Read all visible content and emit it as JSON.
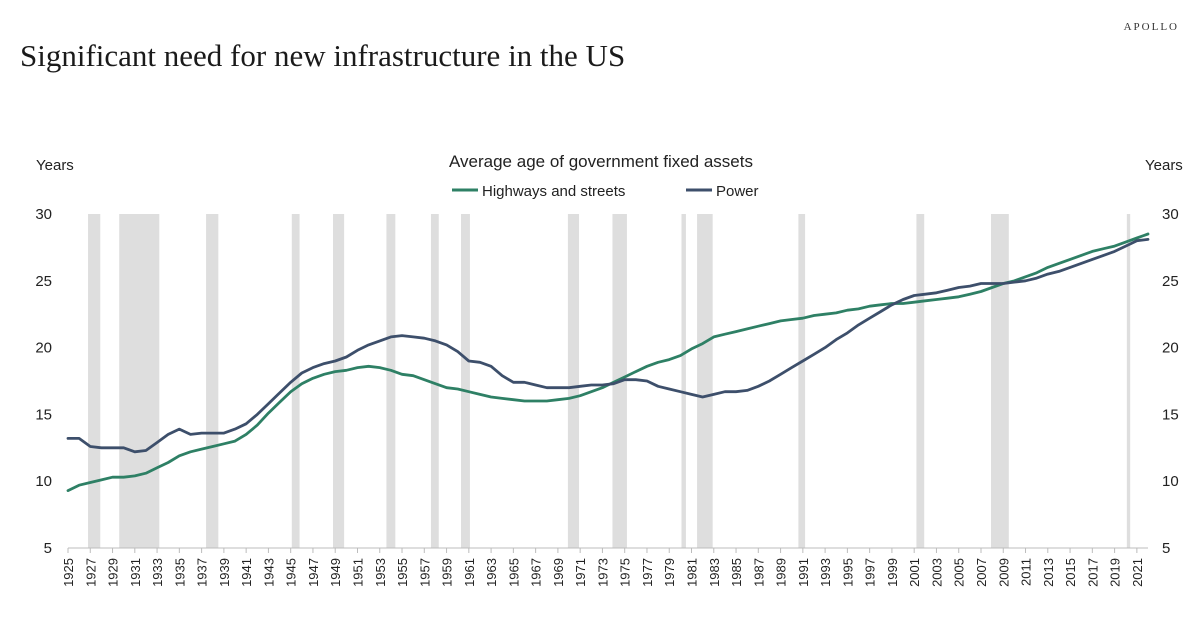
{
  "brand": "APOLLO",
  "page_title": "Significant need for new infrastructure in the US",
  "chart_data": {
    "type": "line",
    "title": "Average age of government fixed assets",
    "ylabel_left": "Years",
    "ylabel_right": "Years",
    "ylim": [
      5,
      30
    ],
    "yticks": [
      5,
      10,
      15,
      20,
      25,
      30
    ],
    "x_range": [
      1925,
      2022
    ],
    "x_tick_labels": [
      "1925",
      "1927",
      "1929",
      "1931",
      "1933",
      "1935",
      "1937",
      "1939",
      "1941",
      "1943",
      "1945",
      "1947",
      "1949",
      "1951",
      "1953",
      "1955",
      "1957",
      "1959",
      "1961",
      "1963",
      "1965",
      "1967",
      "1969",
      "1971",
      "1973",
      "1975",
      "1977",
      "1979",
      "1981",
      "1983",
      "1985",
      "1987",
      "1989",
      "1991",
      "1993",
      "1995",
      "1997",
      "1999",
      "2001",
      "2003",
      "2005",
      "2007",
      "2009",
      "2011",
      "2013",
      "2015",
      "2017",
      "2019",
      "2021"
    ],
    "legend_position": "top-center",
    "grid": false,
    "recession_shading": [
      [
        1926.8,
        1927.9
      ],
      [
        1929.6,
        1933.2
      ],
      [
        1937.4,
        1938.5
      ],
      [
        1945.1,
        1945.8
      ],
      [
        1948.8,
        1949.8
      ],
      [
        1953.6,
        1954.4
      ],
      [
        1957.6,
        1958.3
      ],
      [
        1960.3,
        1961.1
      ],
      [
        1969.9,
        1970.9
      ],
      [
        1973.9,
        1975.2
      ],
      [
        1980.1,
        1980.5
      ],
      [
        1981.5,
        1982.9
      ],
      [
        1990.6,
        1991.2
      ],
      [
        2001.2,
        2001.9
      ],
      [
        2007.9,
        2009.5
      ],
      [
        2020.1,
        2020.4
      ]
    ],
    "series": [
      {
        "name": "Highways and streets",
        "color": "#2e8065",
        "x": [
          1925,
          1926,
          1927,
          1928,
          1929,
          1930,
          1931,
          1932,
          1933,
          1934,
          1935,
          1936,
          1937,
          1938,
          1939,
          1940,
          1941,
          1942,
          1943,
          1944,
          1945,
          1946,
          1947,
          1948,
          1949,
          1950,
          1951,
          1952,
          1953,
          1954,
          1955,
          1956,
          1957,
          1958,
          1959,
          1960,
          1961,
          1962,
          1963,
          1964,
          1965,
          1966,
          1967,
          1968,
          1969,
          1970,
          1971,
          1972,
          1973,
          1974,
          1975,
          1976,
          1977,
          1978,
          1979,
          1980,
          1981,
          1982,
          1983,
          1984,
          1985,
          1986,
          1987,
          1988,
          1989,
          1990,
          1991,
          1992,
          1993,
          1994,
          1995,
          1996,
          1997,
          1998,
          1999,
          2000,
          2001,
          2002,
          2003,
          2004,
          2005,
          2006,
          2007,
          2008,
          2009,
          2010,
          2011,
          2012,
          2013,
          2014,
          2015,
          2016,
          2017,
          2018,
          2019,
          2020,
          2021,
          2022
        ],
        "values": [
          9.3,
          9.7,
          9.9,
          10.1,
          10.3,
          10.3,
          10.4,
          10.6,
          11.0,
          11.4,
          11.9,
          12.2,
          12.4,
          12.6,
          12.8,
          13.0,
          13.5,
          14.2,
          15.1,
          15.9,
          16.7,
          17.3,
          17.7,
          18.0,
          18.2,
          18.3,
          18.5,
          18.6,
          18.5,
          18.3,
          18.0,
          17.9,
          17.6,
          17.3,
          17.0,
          16.9,
          16.7,
          16.5,
          16.3,
          16.2,
          16.1,
          16.0,
          16.0,
          16.0,
          16.1,
          16.2,
          16.4,
          16.7,
          17.0,
          17.4,
          17.8,
          18.2,
          18.6,
          18.9,
          19.1,
          19.4,
          19.9,
          20.3,
          20.8,
          21.0,
          21.2,
          21.4,
          21.6,
          21.8,
          22.0,
          22.1,
          22.2,
          22.4,
          22.5,
          22.6,
          22.8,
          22.9,
          23.1,
          23.2,
          23.3,
          23.3,
          23.4,
          23.5,
          23.6,
          23.7,
          23.8,
          24.0,
          24.2,
          24.5,
          24.8,
          25.0,
          25.3,
          25.6,
          26.0,
          26.3,
          26.6,
          26.9,
          27.2,
          27.4,
          27.6,
          27.9,
          28.2,
          28.5
        ]
      },
      {
        "name": "Power",
        "color": "#3d4f6b",
        "x": [
          1925,
          1926,
          1927,
          1928,
          1929,
          1930,
          1931,
          1932,
          1933,
          1934,
          1935,
          1936,
          1937,
          1938,
          1939,
          1940,
          1941,
          1942,
          1943,
          1944,
          1945,
          1946,
          1947,
          1948,
          1949,
          1950,
          1951,
          1952,
          1953,
          1954,
          1955,
          1956,
          1957,
          1958,
          1959,
          1960,
          1961,
          1962,
          1963,
          1964,
          1965,
          1966,
          1967,
          1968,
          1969,
          1970,
          1971,
          1972,
          1973,
          1974,
          1975,
          1976,
          1977,
          1978,
          1979,
          1980,
          1981,
          1982,
          1983,
          1984,
          1985,
          1986,
          1987,
          1988,
          1989,
          1990,
          1991,
          1992,
          1993,
          1994,
          1995,
          1996,
          1997,
          1998,
          1999,
          2000,
          2001,
          2002,
          2003,
          2004,
          2005,
          2006,
          2007,
          2008,
          2009,
          2010,
          2011,
          2012,
          2013,
          2014,
          2015,
          2016,
          2017,
          2018,
          2019,
          2020,
          2021,
          2022
        ],
        "values": [
          13.2,
          13.2,
          12.6,
          12.5,
          12.5,
          12.5,
          12.2,
          12.3,
          12.9,
          13.5,
          13.9,
          13.5,
          13.6,
          13.6,
          13.6,
          13.9,
          14.3,
          15.0,
          15.8,
          16.6,
          17.4,
          18.1,
          18.5,
          18.8,
          19.0,
          19.3,
          19.8,
          20.2,
          20.5,
          20.8,
          20.9,
          20.8,
          20.7,
          20.5,
          20.2,
          19.7,
          19.0,
          18.9,
          18.6,
          17.9,
          17.4,
          17.4,
          17.2,
          17.0,
          17.0,
          17.0,
          17.1,
          17.2,
          17.2,
          17.3,
          17.6,
          17.6,
          17.5,
          17.1,
          16.9,
          16.7,
          16.5,
          16.3,
          16.5,
          16.7,
          16.7,
          16.8,
          17.1,
          17.5,
          18.0,
          18.5,
          19.0,
          19.5,
          20.0,
          20.6,
          21.1,
          21.7,
          22.2,
          22.7,
          23.2,
          23.6,
          23.9,
          24.0,
          24.1,
          24.3,
          24.5,
          24.6,
          24.8,
          24.8,
          24.8,
          24.9,
          25.0,
          25.2,
          25.5,
          25.7,
          26.0,
          26.3,
          26.6,
          26.9,
          27.2,
          27.6,
          28.0,
          28.1
        ]
      }
    ]
  }
}
